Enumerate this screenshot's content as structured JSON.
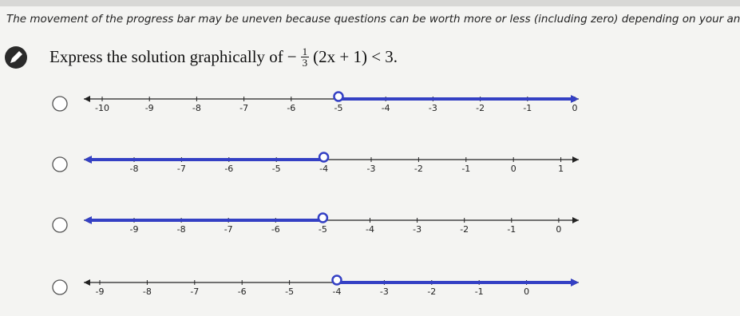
{
  "instruction": "The movement of the progress bar may be uneven because questions can be worth more or less (including zero) depending on your answer.",
  "question": {
    "prompt": "Express the solution graphically of",
    "sign": "−",
    "numerator": "1",
    "denominator": "3",
    "rest": "(2x + 1) < 3."
  },
  "options": [
    {
      "ticks": [
        -10,
        -9,
        -8,
        -7,
        -6,
        -5,
        -4,
        -3,
        -2,
        -1,
        0
      ],
      "open_point": -5,
      "shade": "right"
    },
    {
      "ticks": [
        -8,
        -7,
        -6,
        -5,
        -4,
        -3,
        -2,
        -1,
        0,
        1
      ],
      "open_point": -4,
      "shade": "left"
    },
    {
      "ticks": [
        -9,
        -8,
        -7,
        -6,
        -5,
        -4,
        -3,
        -2,
        -1,
        0
      ],
      "open_point": -5,
      "shade": "left"
    },
    {
      "ticks": [
        -9,
        -8,
        -7,
        -6,
        -5,
        -4,
        -3,
        -2,
        -1,
        0
      ],
      "open_point": -4,
      "shade": "right"
    }
  ]
}
